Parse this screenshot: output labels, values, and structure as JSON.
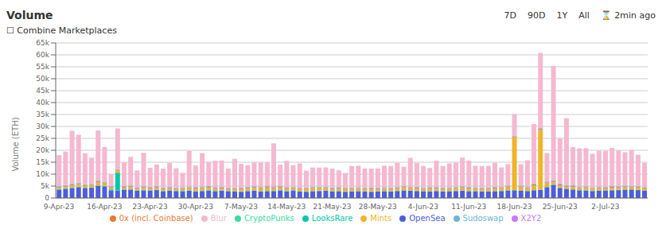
{
  "chart_data": {
    "type": "bar",
    "title": "Volume",
    "subtitle": "☐  Combine Marketplaces",
    "annotations": [
      "7D",
      "90D",
      "1Y",
      "All",
      "⌛ 2min ago"
    ],
    "y_label": "Volume (ETH)",
    "stacked": true,
    "grid": true,
    "legend": "bottom",
    "categories": [
      "9-Apr-23",
      null,
      null,
      null,
      null,
      null,
      null,
      "16-Apr-23",
      null,
      null,
      null,
      null,
      null,
      null,
      "23-Apr-23",
      null,
      null,
      null,
      null,
      null,
      null,
      "30-Apr-23",
      null,
      null,
      null,
      null,
      null,
      null,
      "7-May-23",
      null,
      null,
      null,
      null,
      null,
      null,
      "14-May-23",
      null,
      null,
      null,
      null,
      null,
      null,
      "21-May-23",
      null,
      null,
      null,
      null,
      null,
      null,
      "28-May-23",
      null,
      null,
      null,
      null,
      null,
      null,
      "4-Jun-23",
      null,
      null,
      null,
      null,
      null,
      null,
      "11-Jun-23",
      null,
      null,
      null,
      null,
      null,
      null,
      "18-Jun-23",
      null,
      null,
      null,
      null,
      null,
      null,
      "25-Jun-23",
      null,
      null,
      null,
      null,
      null,
      null,
      "2-Jul-23",
      null,
      null,
      null,
      null,
      null,
      null
    ],
    "ylim": [
      0,
      65000
    ],
    "yticks": [
      0,
      {
        "value": 5000,
        "label": "5k"
      },
      {
        "value": 10000,
        "label": "10k"
      },
      {
        "value": 15000,
        "label": "15k"
      },
      {
        "value": 20000,
        "label": "20k"
      },
      {
        "value": 25000,
        "label": "25k"
      },
      {
        "value": 30000,
        "label": "30k"
      },
      {
        "value": 35000,
        "label": "35k"
      },
      {
        "value": 40000,
        "label": "40k"
      },
      {
        "value": 45000,
        "label": "45k"
      },
      {
        "value": 50000,
        "label": "50k"
      },
      {
        "value": 55000,
        "label": "55k"
      },
      {
        "value": 60000,
        "label": "60k"
      },
      {
        "value": 65000,
        "label": "65k"
      }
    ],
    "series": [
      {
        "name": "OpenSea",
        "color": "#4d5ddb",
        "values": [
          3500,
          3800,
          4200,
          4500,
          4100,
          4300,
          5000,
          4800,
          3200,
          3100,
          3400,
          3500,
          3000,
          3200,
          3100,
          3300,
          2800,
          3000,
          2900,
          2800,
          3000,
          2700,
          2900,
          3100,
          2800,
          3000,
          2800,
          2700,
          2600,
          2800,
          3000,
          2700,
          2800,
          2900,
          3100,
          2800,
          3100,
          2700,
          2600,
          2800,
          2900,
          3000,
          2700,
          2800,
          2600,
          2700,
          2800,
          2700,
          2600,
          2700,
          2800,
          2700,
          2900,
          3100,
          3000,
          2900,
          2800,
          2700,
          2900,
          2700,
          2800,
          2900,
          3000,
          2800,
          2800,
          2700,
          2700,
          2800,
          2900,
          3100,
          3200,
          3000,
          2900,
          3200,
          3400,
          4500,
          5500,
          4200,
          3800,
          3500,
          3200,
          3100,
          2900,
          3000,
          3100,
          3200,
          3300,
          3400,
          3500,
          3300,
          3100
        ]
      },
      {
        "name": "LooksRare",
        "color": "#00c9a7",
        "values": [
          200,
          200,
          300,
          250,
          200,
          180,
          200,
          300,
          400,
          7500,
          200,
          200,
          180,
          200,
          180,
          200,
          180,
          200,
          160,
          180,
          200,
          180,
          160,
          180,
          200,
          160,
          180,
          200,
          160,
          180,
          160,
          180,
          200,
          160,
          180,
          160,
          180,
          160,
          180,
          160,
          180,
          160,
          180,
          160,
          180,
          160,
          140,
          160,
          140,
          160,
          140,
          160,
          140,
          160,
          140,
          160,
          140,
          160,
          140,
          160,
          140,
          160,
          140,
          160,
          140,
          160,
          140,
          160,
          140,
          160,
          140,
          160,
          140,
          160,
          140,
          160,
          140,
          160,
          140,
          160,
          140,
          160,
          140,
          160,
          140,
          160,
          140,
          160,
          140,
          160,
          140
        ]
      },
      {
        "name": "Mints",
        "color": "#f0b429",
        "values": [
          500,
          600,
          700,
          800,
          700,
          650,
          1200,
          900,
          600,
          700,
          600,
          700,
          600,
          700,
          600,
          700,
          600,
          700,
          600,
          700,
          800,
          900,
          1000,
          900,
          800,
          700,
          600,
          700,
          800,
          900,
          1000,
          1100,
          1200,
          1000,
          900,
          800,
          700,
          800,
          900,
          1000,
          900,
          800,
          700,
          800,
          900,
          700,
          800,
          700,
          800,
          700,
          800,
          700,
          900,
          1000,
          900,
          800,
          700,
          900,
          800,
          700,
          800,
          900,
          1000,
          900,
          800,
          700,
          800,
          900,
          1000,
          1100,
          22000,
          1200,
          1000,
          1800,
          25000,
          1400,
          900,
          800,
          700,
          800,
          700,
          800,
          700,
          800,
          700,
          800,
          700,
          800,
          700,
          800,
          700
        ]
      },
      {
        "name": "X2Y2",
        "color": "#c47af5",
        "values": [
          150,
          160,
          180,
          200,
          180,
          160,
          200,
          180,
          160,
          180,
          160,
          180,
          160,
          180,
          160,
          180,
          160,
          180,
          160,
          180,
          160,
          180,
          160,
          180,
          160,
          180,
          160,
          180,
          160,
          180,
          160,
          180,
          160,
          180,
          160,
          180,
          160,
          180,
          160,
          180,
          160,
          180,
          160,
          180,
          160,
          180,
          160,
          180,
          160,
          180,
          160,
          180,
          160,
          180,
          160,
          180,
          160,
          180,
          160,
          180,
          160,
          180,
          160,
          180,
          160,
          180,
          160,
          180,
          160,
          180,
          160,
          180,
          160,
          180,
          160,
          180,
          160,
          180,
          160,
          180,
          160,
          180,
          160,
          180,
          160,
          180,
          160,
          180,
          160,
          180,
          160
        ]
      },
      {
        "name": "0x (incl. Coinbase)",
        "color": "#e87b35",
        "values": [
          300,
          350,
          400,
          350,
          300,
          280,
          350,
          320,
          300,
          320,
          300,
          320,
          300,
          320,
          300,
          320,
          300,
          320,
          300,
          320,
          300,
          320,
          300,
          320,
          300,
          320,
          300,
          320,
          300,
          320,
          300,
          320,
          300,
          320,
          300,
          320,
          300,
          320,
          300,
          320,
          300,
          320,
          300,
          320,
          300,
          320,
          300,
          320,
          300,
          320,
          300,
          320,
          300,
          320,
          300,
          320,
          300,
          320,
          300,
          320,
          300,
          320,
          300,
          320,
          300,
          320,
          300,
          320,
          300,
          320,
          300,
          320,
          300,
          320,
          300,
          320,
          300,
          320,
          300,
          320,
          300,
          320,
          300,
          320,
          300,
          320,
          300,
          320,
          300,
          320,
          300
        ]
      },
      {
        "name": "CryptoPunks",
        "color": "#3dd9a4",
        "values": [
          100,
          120,
          140,
          130,
          120,
          110,
          130,
          120,
          110,
          120,
          110,
          120,
          110,
          120,
          110,
          120,
          110,
          120,
          110,
          120,
          110,
          120,
          110,
          120,
          110,
          120,
          110,
          120,
          110,
          120,
          110,
          120,
          110,
          120,
          110,
          120,
          110,
          120,
          110,
          120,
          110,
          120,
          110,
          120,
          110,
          120,
          110,
          120,
          110,
          120,
          110,
          120,
          110,
          120,
          110,
          120,
          110,
          120,
          110,
          120,
          110,
          120,
          110,
          120,
          110,
          120,
          110,
          120,
          110,
          120,
          110,
          120,
          110,
          120,
          110,
          120,
          110,
          120,
          110,
          120,
          110,
          120,
          110,
          120,
          110,
          120,
          110,
          120,
          110,
          120,
          110
        ]
      },
      {
        "name": "Sudoswap",
        "color": "#6eb5d4",
        "values": [
          200,
          220,
          250,
          230,
          220,
          210,
          230,
          220,
          210,
          220,
          210,
          220,
          210,
          220,
          210,
          220,
          210,
          220,
          210,
          220,
          210,
          220,
          210,
          220,
          210,
          220,
          210,
          220,
          210,
          220,
          210,
          220,
          210,
          220,
          210,
          220,
          210,
          220,
          210,
          220,
          210,
          220,
          210,
          220,
          210,
          220,
          210,
          220,
          210,
          220,
          210,
          220,
          210,
          220,
          210,
          220,
          210,
          220,
          210,
          220,
          210,
          220,
          210,
          220,
          210,
          220,
          210,
          220,
          210,
          220,
          210,
          220,
          210,
          220,
          210,
          220,
          210,
          220,
          210,
          220,
          210,
          220,
          210,
          220,
          210,
          220,
          210,
          220,
          210,
          220,
          210
        ]
      },
      {
        "name": "Blur",
        "color": "#f5b8d0",
        "values": [
          13000,
          14000,
          22000,
          20000,
          13000,
          11000,
          21000,
          14500,
          5000,
          17000,
          10000,
          12000,
          7000,
          14000,
          8000,
          9000,
          8000,
          10000,
          8000,
          6000,
          15000,
          9000,
          14000,
          10000,
          11000,
          11000,
          8000,
          12000,
          10000,
          9000,
          10000,
          10000,
          10000,
          18000,
          9000,
          11000,
          9000,
          10000,
          7000,
          8000,
          8000,
          8000,
          8000,
          7000,
          6000,
          9000,
          9000,
          8000,
          8000,
          8000,
          9000,
          9000,
          10000,
          8000,
          12000,
          10000,
          9000,
          8000,
          11000,
          9000,
          10000,
          10000,
          12000,
          11000,
          9000,
          9000,
          9000,
          10000,
          8000,
          9000,
          9000,
          9000,
          11000,
          25000,
          31500,
          12000,
          48000,
          19000,
          28000,
          16000,
          16000,
          16000,
          14000,
          15000,
          15000,
          16000,
          15000,
          14000,
          15000,
          13000,
          10000
        ]
      }
    ]
  }
}
